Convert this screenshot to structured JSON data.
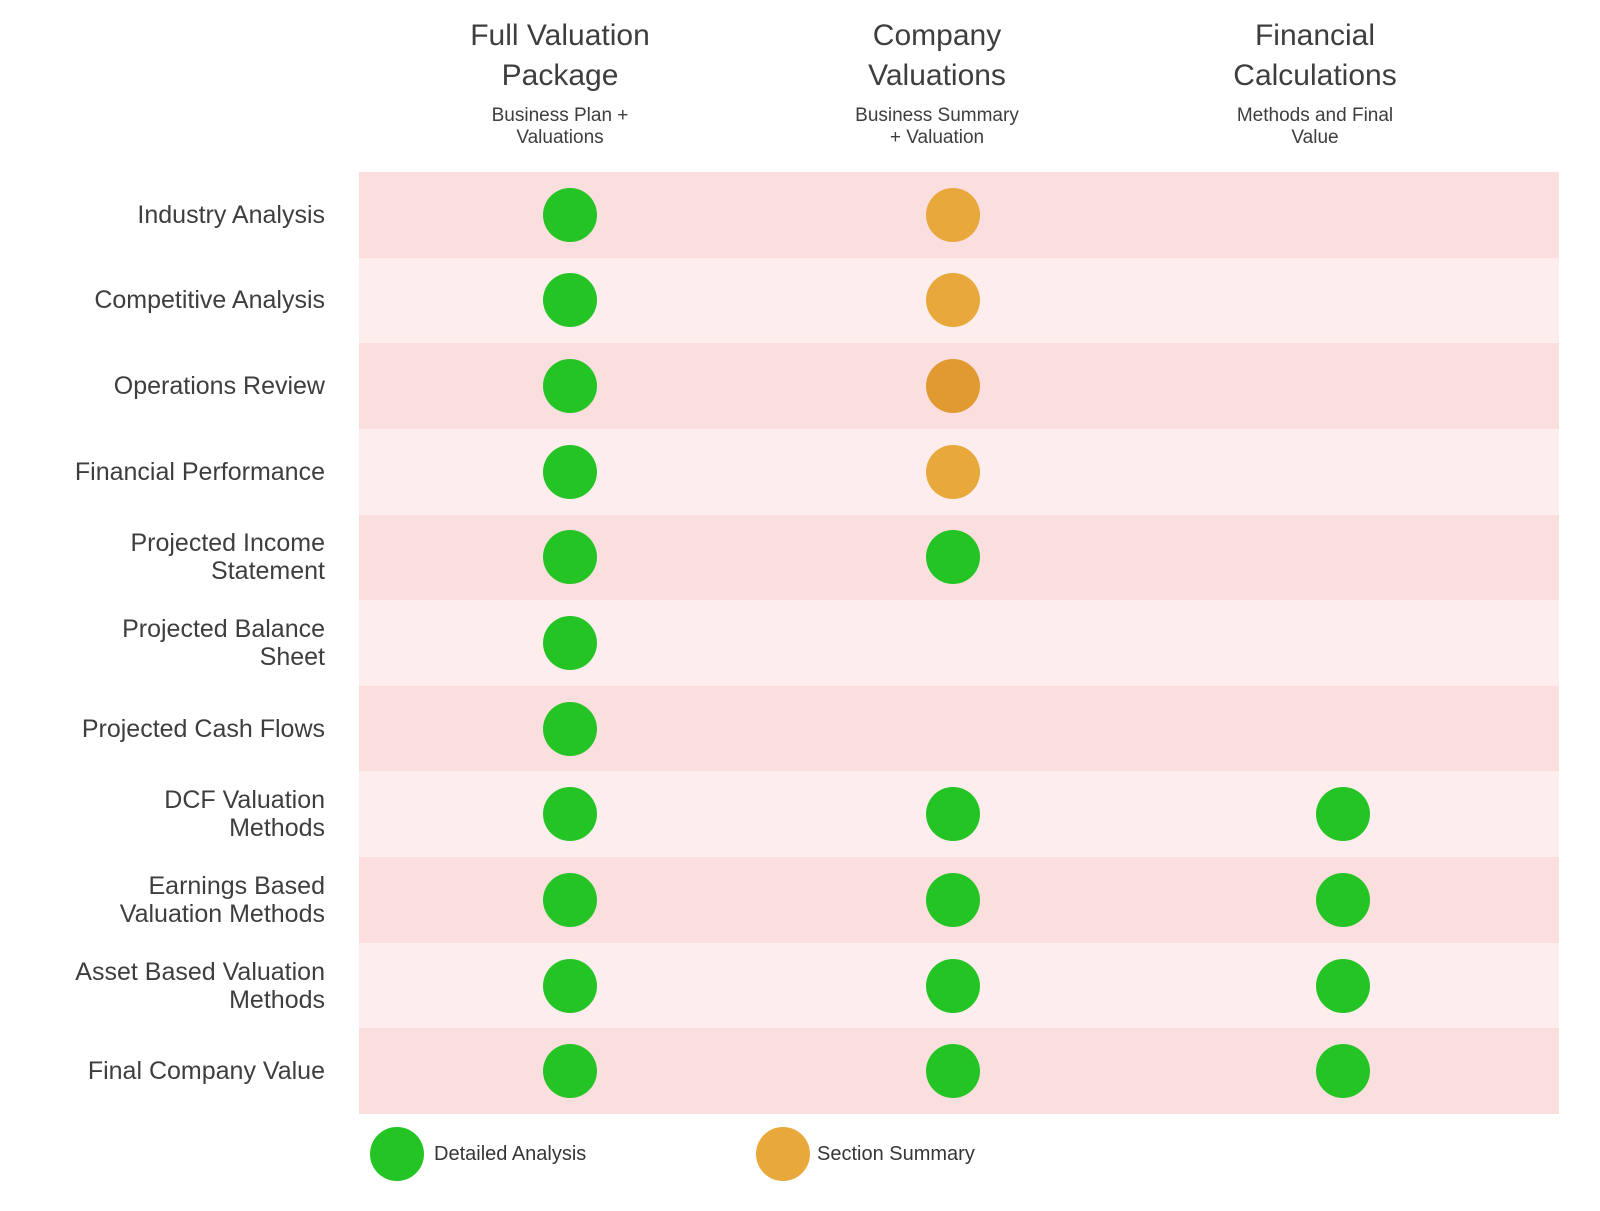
{
  "chart_data": {
    "type": "table",
    "title": "",
    "columns": [
      "Full Valuation Package",
      "Company Valuations",
      "Financial Calculations"
    ],
    "column_subtitles": [
      "Business Plan + Valuations",
      "Business Summary + Valuation",
      "Methods and Final Value"
    ],
    "rows": [
      "Industry Analysis",
      "Competitive Analysis",
      "Operations Review",
      "Financial Performance",
      "Projected Income Statement",
      "Projected Balance Sheet",
      "Projected Cash Flows",
      "DCF Valuation Methods",
      "Earnings Based Valuation Methods",
      "Asset Based Valuation Methods",
      "Final Company Value"
    ],
    "matrix": [
      [
        "detailed",
        "summary",
        null
      ],
      [
        "detailed",
        "summary",
        null
      ],
      [
        "detailed",
        "summary",
        null
      ],
      [
        "detailed",
        "summary",
        null
      ],
      [
        "detailed",
        "detailed",
        null
      ],
      [
        "detailed",
        null,
        null
      ],
      [
        "detailed",
        null,
        null
      ],
      [
        "detailed",
        "detailed",
        "detailed"
      ],
      [
        "detailed",
        "detailed",
        "detailed"
      ],
      [
        "detailed",
        "detailed",
        "detailed"
      ],
      [
        "detailed",
        "detailed",
        "detailed"
      ]
    ],
    "legend": [
      {
        "marker": "detailed",
        "label": "Detailed Analysis",
        "color": "#25C425"
      },
      {
        "marker": "summary",
        "label": "Section Summary",
        "color": "#E9A83C"
      }
    ],
    "layout_hints": {
      "row_stripes": true,
      "legend_position": "bottom-left",
      "grid": false
    }
  },
  "display": {
    "column_titles": [
      "Full Valuation\nPackage",
      "Company\nValuations",
      "Financial\nCalculations"
    ],
    "column_subtitles": [
      "Business Plan +\nValuations",
      "Business Summary\n+ Valuation",
      "Methods and Final\nValue"
    ],
    "row_labels": [
      "Industry Analysis",
      "Competitive Analysis",
      "Operations Review",
      "Financial Performance",
      "Projected Income\nStatement",
      "Projected Balance\nSheet",
      "Projected Cash Flows",
      "DCF Valuation\nMethods",
      "Earnings Based\nValuation Methods",
      "Asset Based Valuation\nMethods",
      "Final Company Value"
    ],
    "matrix": [
      [
        "detailed",
        "summary",
        null
      ],
      [
        "detailed",
        "summary",
        null
      ],
      [
        "detailed",
        "summary_dark",
        null
      ],
      [
        "detailed",
        "summary",
        null
      ],
      [
        "detailed",
        "detailed",
        null
      ],
      [
        "detailed",
        null,
        null
      ],
      [
        "detailed",
        null,
        null
      ],
      [
        "detailed",
        "detailed",
        "detailed"
      ],
      [
        "detailed",
        "detailed",
        "detailed"
      ],
      [
        "detailed",
        "detailed",
        "detailed"
      ],
      [
        "detailed",
        "detailed",
        "detailed"
      ]
    ],
    "legend_items": [
      {
        "marker": "detailed",
        "label": "Detailed Analysis"
      },
      {
        "marker": "summary",
        "label": "Section Summary"
      }
    ]
  },
  "colors": {
    "detailed": "#25C425",
    "summary": "#E9A83C",
    "summary_dark": "#E09A31",
    "band_dark": "#FBDEDE",
    "band_light": "#FDEDED",
    "text": "#3E3E3E",
    "background": "#FFFFFF"
  }
}
